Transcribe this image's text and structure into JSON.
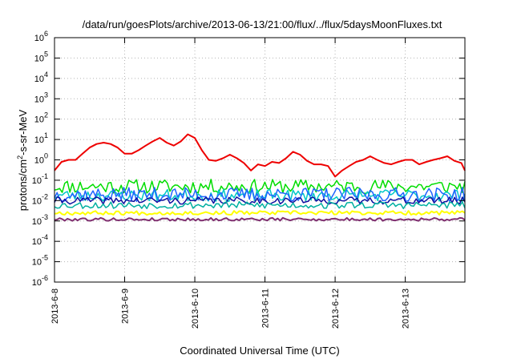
{
  "chart_data": {
    "type": "line",
    "title": "/data/run/goesPlots/archive/2013-06-13/21:00/flux/../flux/5daysMoonFluxes.txt",
    "xlabel": "Coordinated Universal Time (UTC)",
    "ylabel": "protons/cm²-s-sr-MeV",
    "ylabel_parts": {
      "pre": "protons/cm",
      "sup": "2",
      "post": "-s-sr-MeV"
    },
    "x_unit": "days since 2013-6-8 00:00 UTC",
    "xlim": [
      0,
      5.85
    ],
    "x_ticks": [
      {
        "value": 0,
        "label": "2013-6-8"
      },
      {
        "value": 1,
        "label": "2013-6-9"
      },
      {
        "value": 2,
        "label": "2013-6-10"
      },
      {
        "value": 3,
        "label": "2013-6-11"
      },
      {
        "value": 4,
        "label": "2013-6-12"
      },
      {
        "value": 5,
        "label": "2013-6-13"
      }
    ],
    "y_scale": "log",
    "ylim": [
      1e-06,
      1000000.0
    ],
    "y_ticks": [
      {
        "exp": -6,
        "base": "10",
        "sup": "-6"
      },
      {
        "exp": -5,
        "base": "10",
        "sup": "-5"
      },
      {
        "exp": -4,
        "base": "10",
        "sup": "-4"
      },
      {
        "exp": -3,
        "base": "10",
        "sup": "-3"
      },
      {
        "exp": -2,
        "base": "10",
        "sup": "-2"
      },
      {
        "exp": -1,
        "base": "10",
        "sup": "-1"
      },
      {
        "exp": 0,
        "base": "10",
        "sup": "0"
      },
      {
        "exp": 1,
        "base": "10",
        "sup": "1"
      },
      {
        "exp": 2,
        "base": "10",
        "sup": "2"
      },
      {
        "exp": 3,
        "base": "10",
        "sup": "3"
      },
      {
        "exp": 4,
        "base": "10",
        "sup": "4"
      },
      {
        "exp": 5,
        "base": "10",
        "sup": "5"
      },
      {
        "exp": 6,
        "base": "10",
        "sup": "6"
      }
    ],
    "grid": true,
    "series": [
      {
        "color": "#ee0000",
        "width": 2,
        "x": [
          0,
          0.1,
          0.2,
          0.3,
          0.4,
          0.5,
          0.6,
          0.7,
          0.8,
          0.9,
          1.0,
          1.1,
          1.2,
          1.3,
          1.4,
          1.5,
          1.6,
          1.7,
          1.8,
          1.9,
          2.0,
          2.1,
          2.2,
          2.3,
          2.4,
          2.5,
          2.6,
          2.7,
          2.8,
          2.9,
          3.0,
          3.1,
          3.2,
          3.3,
          3.4,
          3.5,
          3.6,
          3.7,
          3.8,
          3.9,
          4.0,
          4.1,
          4.2,
          4.3,
          4.4,
          4.5,
          4.6,
          4.7,
          4.8,
          4.9,
          5.0,
          5.1,
          5.2,
          5.3,
          5.4,
          5.5,
          5.6,
          5.7,
          5.8,
          5.85
        ],
        "values": [
          0.3,
          0.8,
          1.0,
          1.0,
          2,
          4,
          6,
          7,
          6,
          4,
          2,
          2,
          3,
          5,
          8,
          12,
          7,
          5,
          8,
          18,
          12,
          3,
          1.0,
          0.9,
          1.2,
          1.8,
          1.2,
          0.7,
          0.3,
          0.6,
          0.5,
          0.8,
          0.7,
          1.2,
          2.5,
          1.8,
          0.9,
          0.6,
          0.6,
          0.5,
          0.15,
          0.3,
          0.5,
          0.8,
          1.0,
          1.5,
          1.0,
          0.7,
          0.6,
          0.8,
          1.0,
          1.0,
          0.6,
          0.8,
          1.0,
          1.2,
          1.5,
          0.9,
          0.7,
          0.3
        ]
      },
      {
        "color": "#00dd00",
        "width": 1.5,
        "base": 0.05,
        "jitter": 0.7,
        "seed": 11
      },
      {
        "color": "#00c8c8",
        "width": 1.5,
        "base": 0.018,
        "jitter": 0.6,
        "seed": 23
      },
      {
        "color": "#1e64ff",
        "width": 1.5,
        "base": 0.02,
        "jitter": 0.7,
        "seed": 37
      },
      {
        "color": "#1010a0",
        "width": 1.5,
        "base": 0.01,
        "jitter": 0.35,
        "seed": 41
      },
      {
        "color": "#00b0a0",
        "width": 1.5,
        "base": 0.006,
        "jitter": 0.35,
        "seed": 53
      },
      {
        "color": "#ffff00",
        "width": 2,
        "base": 0.0025,
        "jitter": 0.2,
        "seed": 67
      },
      {
        "color": "#803070",
        "width": 2,
        "base": 0.0012,
        "jitter": 0.15,
        "seed": 79
      }
    ]
  }
}
